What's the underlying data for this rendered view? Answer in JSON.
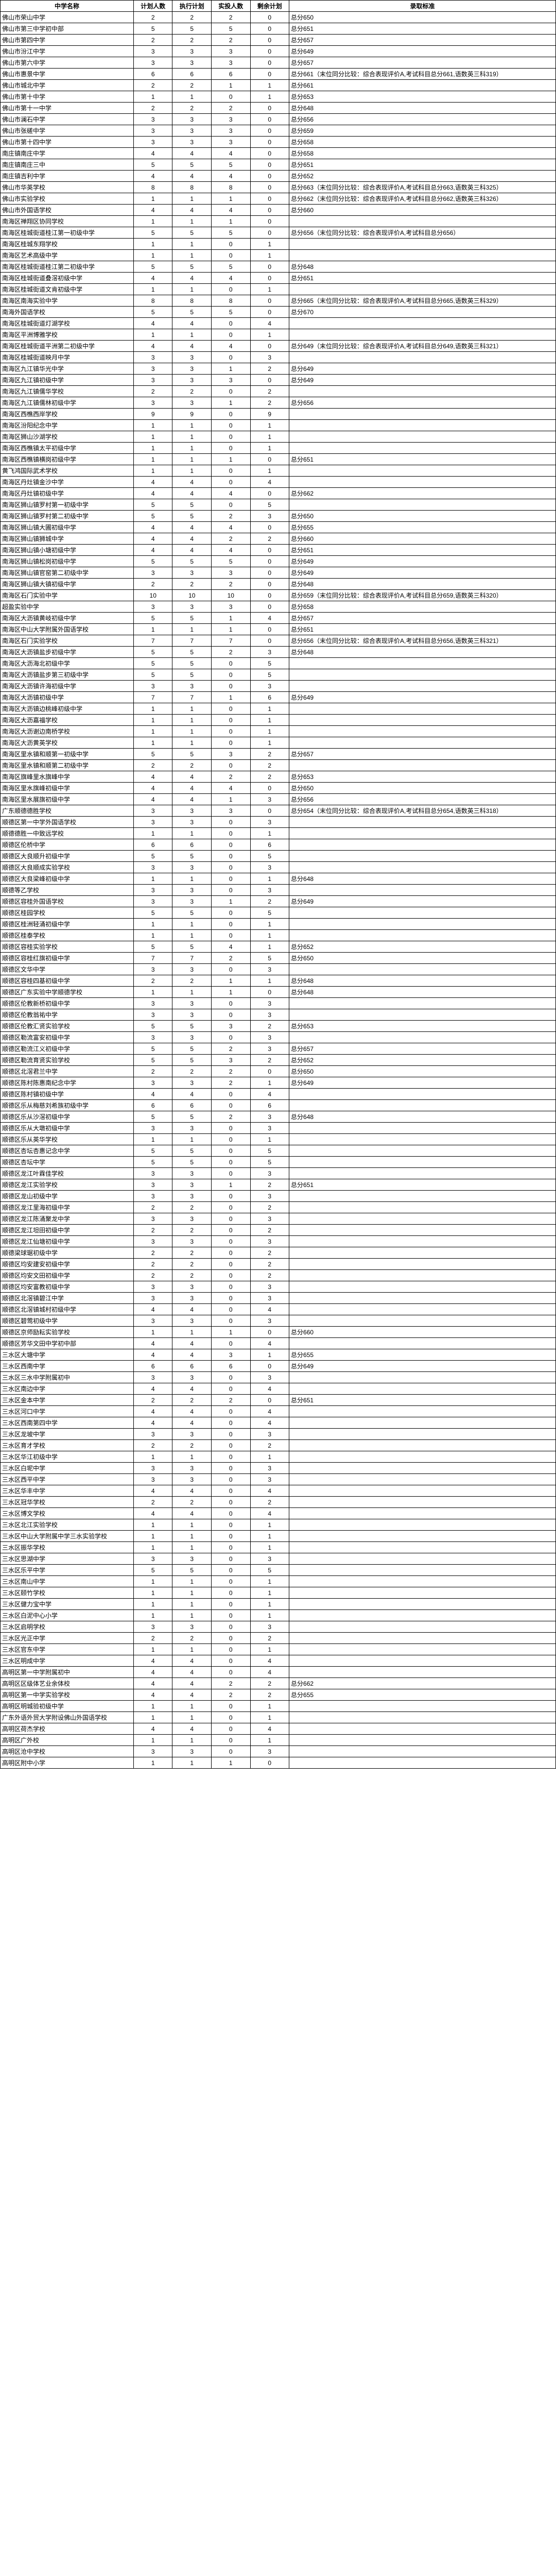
{
  "headers": [
    "中学名称",
    "计划人数",
    "执行计划",
    "实投人数",
    "剩余计划",
    "录取标准"
  ],
  "rows": [
    [
      "佛山市荣山中学",
      "2",
      "2",
      "2",
      "0",
      "总分650"
    ],
    [
      "佛山市第三中学初中部",
      "5",
      "5",
      "5",
      "0",
      "总分651"
    ],
    [
      "佛山市第四中学",
      "2",
      "2",
      "2",
      "0",
      "总分657"
    ],
    [
      "佛山市汾江中学",
      "3",
      "3",
      "3",
      "0",
      "总分649"
    ],
    [
      "佛山市第六中学",
      "3",
      "3",
      "3",
      "0",
      "总分657"
    ],
    [
      "佛山市惠景中学",
      "6",
      "6",
      "6",
      "0",
      "总分661（末位同分比较：综合表现评价A,考试科目总分661,语数英三科319）"
    ],
    [
      "佛山市城北中学",
      "2",
      "2",
      "1",
      "1",
      "总分661"
    ],
    [
      "佛山市第十中学",
      "1",
      "1",
      "0",
      "1",
      "总分653"
    ],
    [
      "佛山市第十一中学",
      "2",
      "2",
      "2",
      "0",
      "总分648"
    ],
    [
      "佛山市澜石中学",
      "3",
      "3",
      "3",
      "0",
      "总分656"
    ],
    [
      "佛山市张槎中学",
      "3",
      "3",
      "3",
      "0",
      "总分659"
    ],
    [
      "佛山市第十四中学",
      "3",
      "3",
      "3",
      "0",
      "总分658"
    ],
    [
      "南庄镇南庄中学",
      "4",
      "4",
      "4",
      "0",
      "总分658"
    ],
    [
      "南庄镇南庄三中",
      "5",
      "5",
      "5",
      "0",
      "总分651"
    ],
    [
      "南庄镇吉利中学",
      "4",
      "4",
      "4",
      "0",
      "总分652"
    ],
    [
      "佛山市华英学校",
      "8",
      "8",
      "8",
      "0",
      "总分663（末位同分比较：综合表现评价A,考试科目总分663,语数英三科325）"
    ],
    [
      "佛山市实验学校",
      "1",
      "1",
      "1",
      "0",
      "总分662（末位同分比较：综合表现评价A,考试科目总分662,语数英三科326）"
    ],
    [
      "佛山市外国语学校",
      "4",
      "4",
      "4",
      "0",
      "总分660"
    ],
    [
      "南海区禅翔区协同学校",
      "1",
      "1",
      "1",
      "0",
      ""
    ],
    [
      "南海区桂城街道桂江第一初级中学",
      "5",
      "5",
      "5",
      "0",
      "总分656（末位同分比较：综合表现评价A,考试科目总分656）"
    ],
    [
      "南海区桂城东翔学校",
      "1",
      "1",
      "0",
      "1",
      ""
    ],
    [
      "南海区艺术高级中学",
      "1",
      "1",
      "0",
      "1",
      ""
    ],
    [
      "南海区桂城街道桂江第二初级中学",
      "5",
      "5",
      "5",
      "0",
      "总分648"
    ],
    [
      "南海区桂城街道叠滘初级中学",
      "4",
      "4",
      "4",
      "0",
      "总分651"
    ],
    [
      "南海区桂城街道文肯初级中学",
      "1",
      "1",
      "0",
      "1",
      ""
    ],
    [
      "南海区南海实验中学",
      "8",
      "8",
      "8",
      "0",
      "总分665（末位同分比较：综合表现评价A,考试科目总分665,语数英三科329）"
    ],
    [
      "南海外国语学校",
      "5",
      "5",
      "5",
      "0",
      "总分670"
    ],
    [
      "南海区桂城街道灯湖学校",
      "4",
      "4",
      "0",
      "4",
      ""
    ],
    [
      "南海区平洲博雅学校",
      "1",
      "1",
      "0",
      "1",
      ""
    ],
    [
      "南海区桂城街道平洲第二初级中学",
      "4",
      "4",
      "4",
      "0",
      "总分649（末位同分比较：综合表现评价A,考试科目总分649,语数英三科321）"
    ],
    [
      "南海区桂城街道映月中学",
      "3",
      "3",
      "0",
      "3",
      ""
    ],
    [
      "南海区九江镇华光中学",
      "3",
      "3",
      "1",
      "2",
      "总分649"
    ],
    [
      "南海区九江镇初级中学",
      "3",
      "3",
      "3",
      "0",
      "总分649"
    ],
    [
      "南海区九江镇儒华学校",
      "2",
      "2",
      "0",
      "2",
      ""
    ],
    [
      "南海区九江镇儒林初级中学",
      "3",
      "3",
      "1",
      "2",
      "总分656"
    ],
    [
      "南海区西樵西岸学校",
      "9",
      "9",
      "0",
      "9",
      ""
    ],
    [
      "南海区汾阳纪念中学",
      "1",
      "1",
      "0",
      "1",
      ""
    ],
    [
      "南海区狮山沙湖学校",
      "1",
      "1",
      "0",
      "1",
      ""
    ],
    [
      "南海区西樵镇太平初级中学",
      "1",
      "1",
      "0",
      "1",
      ""
    ],
    [
      "南海区西樵镇横岗初级中学",
      "1",
      "1",
      "1",
      "0",
      "总分651"
    ],
    [
      "黄飞鸿国际武术学校",
      "1",
      "1",
      "0",
      "1",
      ""
    ],
    [
      "南海区丹灶镇金沙中学",
      "4",
      "4",
      "0",
      "4",
      ""
    ],
    [
      "南海区丹灶镇初级中学",
      "4",
      "4",
      "4",
      "0",
      "总分662"
    ],
    [
      "南海区狮山镇罗村第一初级中学",
      "5",
      "5",
      "0",
      "5",
      ""
    ],
    [
      "南海区狮山镇罗村第二初级中学",
      "5",
      "5",
      "2",
      "3",
      "总分650"
    ],
    [
      "南海区狮山镇大圃初级中学",
      "4",
      "4",
      "4",
      "0",
      "总分655"
    ],
    [
      "南海区狮山镇狮城中学",
      "4",
      "4",
      "2",
      "2",
      "总分660"
    ],
    [
      "南海区狮山镇小塘初级中学",
      "4",
      "4",
      "4",
      "0",
      "总分651"
    ],
    [
      "南海区狮山镇松岗初级中学",
      "5",
      "5",
      "5",
      "0",
      "总分649"
    ],
    [
      "南海区狮山镇官窑第二初级中学",
      "3",
      "3",
      "3",
      "0",
      "总分649"
    ],
    [
      "南海区狮山镇大镇初级中学",
      "2",
      "2",
      "2",
      "0",
      "总分648"
    ],
    [
      "南海区石门实验中学",
      "10",
      "10",
      "10",
      "0",
      "总分659（末位同分比较：综合表现评价A,考试科目总分659,语数英三科320）"
    ],
    [
      "超盈实验中学",
      "3",
      "3",
      "3",
      "0",
      "总分658"
    ],
    [
      "南海区大沥镇黄岐初级中学",
      "5",
      "5",
      "1",
      "4",
      "总分657"
    ],
    [
      "南海区中山大学附属外国语学校",
      "1",
      "1",
      "1",
      "0",
      "总分651"
    ],
    [
      "南海区石门实验学校",
      "7",
      "7",
      "7",
      "0",
      "总分656（末位同分比较：综合表现评价A,考试科目总分656,语数英三科321）"
    ],
    [
      "南海区大沥镇盐步初级中学",
      "5",
      "5",
      "2",
      "3",
      "总分648"
    ],
    [
      "南海区大沥海北初级中学",
      "5",
      "5",
      "0",
      "5",
      ""
    ],
    [
      "南海区大沥镇盐步第三初级中学",
      "5",
      "5",
      "0",
      "5",
      ""
    ],
    [
      "南海区大沥镇许海初级中学",
      "3",
      "3",
      "0",
      "3",
      ""
    ],
    [
      "南海区大沥镇初级中学",
      "7",
      "7",
      "1",
      "6",
      "总分649"
    ],
    [
      "南海区大沥镇边桃峰初级中学",
      "1",
      "1",
      "0",
      "1",
      ""
    ],
    [
      "南海区大沥嘉福学校",
      "1",
      "1",
      "0",
      "1",
      ""
    ],
    [
      "南海区大沥谢边南桥学校",
      "1",
      "1",
      "0",
      "1",
      ""
    ],
    [
      "南海区大沥黄英学校",
      "1",
      "1",
      "0",
      "1",
      ""
    ],
    [
      "南海区里水镇和顺第一初级中学",
      "5",
      "5",
      "3",
      "2",
      "总分657"
    ],
    [
      "南海区里水镇和顺第二初级中学",
      "2",
      "2",
      "0",
      "2",
      ""
    ],
    [
      "南海区旗峰里水旗峰中学",
      "4",
      "4",
      "2",
      "2",
      "总分653"
    ],
    [
      "南海区里水旗峰初级中学",
      "4",
      "4",
      "4",
      "0",
      "总分650"
    ],
    [
      "南海区里水展旗初级中学",
      "4",
      "4",
      "1",
      "3",
      "总分656"
    ],
    [
      "广东顺德德胜学校",
      "3",
      "3",
      "3",
      "0",
      "总分654（末位同分比较：综合表现评价A,考试科目总分654,语数英三科318）"
    ],
    [
      "顺德区第一中学外国语学校",
      "3",
      "3",
      "0",
      "3",
      ""
    ],
    [
      "顺德德胜一中致远学校",
      "1",
      "1",
      "0",
      "1",
      ""
    ],
    [
      "顺德区伦桥中学",
      "6",
      "6",
      "0",
      "6",
      ""
    ],
    [
      "顺德区大良顺升初级中学",
      "5",
      "5",
      "0",
      "5",
      ""
    ],
    [
      "顺德区大良顺成实验学校",
      "3",
      "3",
      "0",
      "3",
      ""
    ],
    [
      "顺德区大良梁峰初级中学",
      "1",
      "1",
      "0",
      "1",
      "总分648"
    ],
    [
      "顺德等乙学校",
      "3",
      "3",
      "0",
      "3",
      ""
    ],
    [
      "顺德区容桂外国语学校",
      "3",
      "3",
      "1",
      "2",
      "总分649"
    ],
    [
      "顺德区桂园学校",
      "5",
      "5",
      "0",
      "5",
      ""
    ],
    [
      "顺德区桂洲轻涌初级中学",
      "1",
      "1",
      "0",
      "1",
      ""
    ],
    [
      "顺德区桂泰学校",
      "1",
      "1",
      "0",
      "1",
      ""
    ],
    [
      "顺德区容桂实验学校",
      "5",
      "5",
      "4",
      "1",
      "总分652"
    ],
    [
      "顺德区容桂红旗初级中学",
      "7",
      "7",
      "2",
      "5",
      "总分650"
    ],
    [
      "顺德区文华中学",
      "3",
      "3",
      "0",
      "3",
      ""
    ],
    [
      "顺德区容桂四基初级中学",
      "2",
      "2",
      "1",
      "1",
      "总分648"
    ],
    [
      "顺德区广东实验中学顺德学校",
      "1",
      "1",
      "1",
      "0",
      "总分648"
    ],
    [
      "顺德区伦教新桥初级中学",
      "3",
      "3",
      "0",
      "3",
      ""
    ],
    [
      "顺德区伦教翁祐中学",
      "3",
      "3",
      "0",
      "3",
      ""
    ],
    [
      "顺德区伦教汇贤实验学校",
      "5",
      "5",
      "3",
      "2",
      "总分653"
    ],
    [
      "顺德区勒流富安初级中学",
      "3",
      "3",
      "0",
      "3",
      ""
    ],
    [
      "顺德区勒流江义初级中学",
      "5",
      "5",
      "2",
      "3",
      "总分657"
    ],
    [
      "顺德区勒流育贤实验学校",
      "5",
      "5",
      "3",
      "2",
      "总分652"
    ],
    [
      "顺德区北滘君兰中学",
      "2",
      "2",
      "2",
      "0",
      "总分650"
    ],
    [
      "顺德区陈村陈惠南纪念中学",
      "3",
      "3",
      "2",
      "1",
      "总分649"
    ],
    [
      "顺德区陈村镇初级中学",
      "4",
      "4",
      "0",
      "4",
      ""
    ],
    [
      "顺德区乐从梅慈刘希族初级中学",
      "6",
      "6",
      "0",
      "6",
      ""
    ],
    [
      "顺德区乐从沙滘初级中学",
      "5",
      "5",
      "2",
      "3",
      "总分648"
    ],
    [
      "顺德区乐从大墩初级中学",
      "3",
      "3",
      "0",
      "3",
      ""
    ],
    [
      "顺德区乐从英华学校",
      "1",
      "1",
      "0",
      "1",
      ""
    ],
    [
      "顺德区杏坛杏惠记念中学",
      "5",
      "5",
      "0",
      "5",
      ""
    ],
    [
      "顺德区杏坛中学",
      "5",
      "5",
      "0",
      "5",
      ""
    ],
    [
      "顺德区龙江叶霖佳学校",
      "3",
      "3",
      "0",
      "3",
      ""
    ],
    [
      "顺德区龙江实验学校",
      "3",
      "3",
      "1",
      "2",
      "总分651"
    ],
    [
      "顺德区龙山初级中学",
      "3",
      "3",
      "0",
      "3",
      ""
    ],
    [
      "顺德区龙江里海初级中学",
      "2",
      "2",
      "0",
      "2",
      ""
    ],
    [
      "顺德区龙江陈涌聚龙中学",
      "3",
      "3",
      "0",
      "3",
      ""
    ],
    [
      "顺德区龙江坦田初级中学",
      "2",
      "2",
      "0",
      "2",
      ""
    ],
    [
      "顺德区龙江仙塘初级中学",
      "3",
      "3",
      "0",
      "3",
      ""
    ],
    [
      "顺德梁球琚初级中学",
      "2",
      "2",
      "0",
      "2",
      ""
    ],
    [
      "顺德区均安建安初级中学",
      "2",
      "2",
      "0",
      "2",
      ""
    ],
    [
      "顺德区均安文田初级中学",
      "2",
      "2",
      "0",
      "2",
      ""
    ],
    [
      "顺德区均安富教初级中学",
      "3",
      "3",
      "0",
      "3",
      ""
    ],
    [
      "顺德区北滘镇碧江中学",
      "3",
      "3",
      "0",
      "3",
      ""
    ],
    [
      "顺德区北滘镇城村初级中学",
      "4",
      "4",
      "0",
      "4",
      ""
    ],
    [
      "顺德区碧莺初级中学",
      "3",
      "3",
      "0",
      "3",
      ""
    ],
    [
      "顺德区京师励耘实验学校",
      "1",
      "1",
      "1",
      "0",
      "总分660"
    ],
    [
      "顺德区芳华文田中学初中部",
      "4",
      "4",
      "0",
      "4",
      ""
    ],
    [
      "三水区大塘中学",
      "4",
      "4",
      "3",
      "1",
      "总分655"
    ],
    [
      "三水区西南中学",
      "6",
      "6",
      "6",
      "0",
      "总分649"
    ],
    [
      "三水区三水中学附属初中",
      "3",
      "3",
      "0",
      "3",
      ""
    ],
    [
      "三水区南边中学",
      "4",
      "4",
      "0",
      "4",
      ""
    ],
    [
      "三水区金本中学",
      "2",
      "2",
      "2",
      "0",
      "总分651"
    ],
    [
      "三水区河口中学",
      "4",
      "4",
      "0",
      "4",
      ""
    ],
    [
      "三水区西南第四中学",
      "4",
      "4",
      "0",
      "4",
      ""
    ],
    [
      "三水区龙坡中学",
      "3",
      "3",
      "0",
      "3",
      ""
    ],
    [
      "三水区育才学校",
      "2",
      "2",
      "0",
      "2",
      ""
    ],
    [
      "三水区华江初级中学",
      "1",
      "1",
      "0",
      "1",
      ""
    ],
    [
      "三水区白坭中学",
      "3",
      "3",
      "0",
      "3",
      ""
    ],
    [
      "三水区西平中学",
      "3",
      "3",
      "0",
      "3",
      ""
    ],
    [
      "三水区华丰中学",
      "4",
      "4",
      "0",
      "4",
      ""
    ],
    [
      "三水区冠华学校",
      "2",
      "2",
      "0",
      "2",
      ""
    ],
    [
      "三水区博文学校",
      "4",
      "4",
      "0",
      "4",
      ""
    ],
    [
      "三水区北江实验学校",
      "1",
      "1",
      "0",
      "1",
      ""
    ],
    [
      "三水区中山大学附属中学三水实验学校",
      "1",
      "1",
      "0",
      "1",
      ""
    ],
    [
      "三水区振华学校",
      "1",
      "1",
      "0",
      "1",
      ""
    ],
    [
      "三水区思湖中学",
      "3",
      "3",
      "0",
      "3",
      ""
    ],
    [
      "三水区乐平中学",
      "5",
      "5",
      "0",
      "5",
      ""
    ],
    [
      "三水区南山中学",
      "1",
      "1",
      "0",
      "1",
      ""
    ],
    [
      "三水区颐竹学校",
      "1",
      "1",
      "0",
      "1",
      ""
    ],
    [
      "三水区健力宝中学",
      "1",
      "1",
      "0",
      "1",
      ""
    ],
    [
      "三水区白泥中心小学",
      "1",
      "1",
      "0",
      "1",
      ""
    ],
    [
      "三水区启明学校",
      "3",
      "3",
      "0",
      "3",
      ""
    ],
    [
      "三水区光正中学",
      "2",
      "2",
      "0",
      "2",
      ""
    ],
    [
      "三水区官东中学",
      "1",
      "1",
      "0",
      "1",
      ""
    ],
    [
      "三水区明成中学",
      "4",
      "4",
      "0",
      "4",
      ""
    ],
    [
      "高明区第一中学附属初中",
      "4",
      "4",
      "0",
      "4",
      ""
    ],
    [
      "高明区区级体艺业余体校",
      "4",
      "4",
      "2",
      "2",
      "总分662"
    ],
    [
      "高明区第一中学实验学校",
      "4",
      "4",
      "2",
      "2",
      "总分655"
    ],
    [
      "高明区明城验初级中学",
      "1",
      "1",
      "0",
      "1",
      ""
    ],
    [
      "广东外语外贸大学附设佛山外国语学校",
      "1",
      "1",
      "0",
      "1",
      ""
    ],
    [
      "高明区荷杰学校",
      "4",
      "4",
      "0",
      "4",
      ""
    ],
    [
      "高明区广外校",
      "1",
      "1",
      "0",
      "1",
      ""
    ],
    [
      "高明区沧中学校",
      "3",
      "3",
      "0",
      "3",
      ""
    ],
    [
      "高明区附中小学",
      "1",
      "1",
      "1",
      "0",
      ""
    ]
  ]
}
